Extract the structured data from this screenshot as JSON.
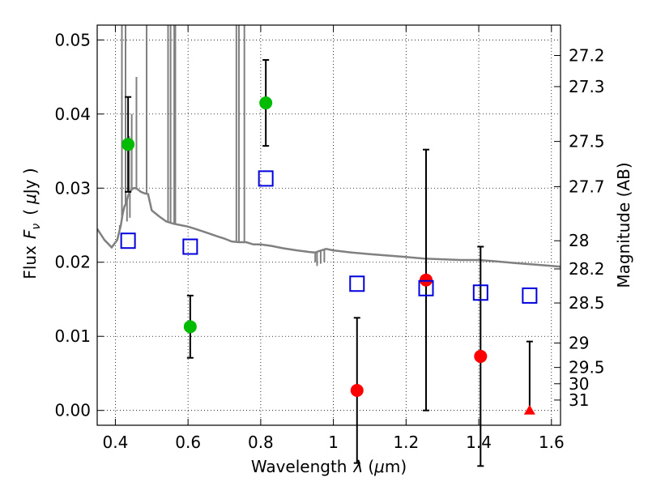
{
  "chart_data": {
    "type": "scatter",
    "xlabel_text": "Wavelength",
    "xlabel_math": "λ",
    "xlabel_unit_open": "(",
    "xlabel_unit_math": "μ",
    "xlabel_unit_rest": "m)",
    "ylabel_text": "Flux",
    "ylabel_math_main": "F",
    "ylabel_math_sub": "ν",
    "ylabel_unit_open": "(",
    "ylabel_unit_math": "μ",
    "ylabel_unit_rest": "Jy )",
    "y2label": "Magnitude (AB)",
    "xlim": [
      0.35,
      1.625
    ],
    "ylim": [
      -0.002,
      0.052
    ],
    "x_ticks": [
      0.4,
      0.6,
      0.8,
      1.0,
      1.2,
      1.4,
      1.6
    ],
    "x_tick_labels": [
      "0.4",
      "0.6",
      "0.8",
      "1",
      "1.2",
      "1.4",
      "1.6"
    ],
    "y_ticks": [
      0.0,
      0.01,
      0.02,
      0.03,
      0.04,
      0.05
    ],
    "y_tick_labels": [
      "0.00",
      "0.01",
      "0.02",
      "0.03",
      "0.04",
      "0.05"
    ],
    "mag_ticks": [
      {
        "label": "27.2",
        "flux": 0.0479
      },
      {
        "label": "27.3",
        "flux": 0.0437
      },
      {
        "label": "27.5",
        "flux": 0.0363
      },
      {
        "label": "27.7",
        "flux": 0.0302
      },
      {
        "label": "28",
        "flux": 0.0229
      },
      {
        "label": "28.2",
        "flux": 0.0191
      },
      {
        "label": "28.5",
        "flux": 0.0145
      },
      {
        "label": "29",
        "flux": 0.0091
      },
      {
        "label": "29.5",
        "flux": 0.0058
      },
      {
        "label": "30",
        "flux": 0.0036
      },
      {
        "label": "31",
        "flux": 0.0014
      }
    ],
    "grid": true,
    "colors": {
      "green": "#00bb00",
      "red": "#ff0000",
      "blue": "#0000dd",
      "model": "#808080",
      "errorbar": "#000000"
    },
    "series": [
      {
        "marker": "circle",
        "color": "#00bb00",
        "points": [
          {
            "x": 0.435,
            "y": 0.0359,
            "err": 0.0064
          },
          {
            "x": 0.606,
            "y": 0.0113,
            "err": 0.0042
          },
          {
            "x": 0.814,
            "y": 0.0415,
            "err": 0.0058
          }
        ]
      },
      {
        "marker": "circle",
        "color": "#ff0000",
        "points": [
          {
            "x": 1.065,
            "y": 0.0027,
            "err": 0.0098
          },
          {
            "x": 1.255,
            "y": 0.0176,
            "err": 0.0176
          },
          {
            "x": 1.405,
            "y": 0.0073,
            "err": 0.0148
          }
        ]
      },
      {
        "marker": "triangle",
        "color": "#ff0000",
        "points": [
          {
            "x": 1.54,
            "y": 0.0,
            "err_hi": 0.0093
          }
        ]
      },
      {
        "marker": "open-square",
        "color": "#0000dd",
        "points": [
          {
            "x": 0.435,
            "y": 0.0229
          },
          {
            "x": 0.606,
            "y": 0.0221
          },
          {
            "x": 0.814,
            "y": 0.0313
          },
          {
            "x": 1.065,
            "y": 0.0171
          },
          {
            "x": 1.255,
            "y": 0.0165
          },
          {
            "x": 1.405,
            "y": 0.0159
          },
          {
            "x": 1.54,
            "y": 0.0155
          }
        ]
      }
    ],
    "model_spectrum": {
      "color": "#808080",
      "x": [
        0.35,
        0.37,
        0.39,
        0.405,
        0.415,
        0.42,
        0.425,
        0.43,
        0.435,
        0.44,
        0.445,
        0.45,
        0.455,
        0.46,
        0.47,
        0.48,
        0.49,
        0.5,
        0.52,
        0.54,
        0.56,
        0.58,
        0.6,
        0.62,
        0.65,
        0.68,
        0.7,
        0.72,
        0.74,
        0.76,
        0.78,
        0.8,
        0.83,
        0.86,
        0.9,
        0.93,
        0.95,
        0.96,
        0.98,
        1.0,
        1.05,
        1.1,
        1.15,
        1.2,
        1.25,
        1.3,
        1.35,
        1.4,
        1.45,
        1.5,
        1.55,
        1.6,
        1.625
      ],
      "y": [
        0.0245,
        0.023,
        0.022,
        0.023,
        0.025,
        0.0265,
        0.0275,
        0.028,
        0.029,
        0.0295,
        0.0298,
        0.03,
        0.03,
        0.0299,
        0.0295,
        0.0293,
        0.0292,
        0.027,
        0.0262,
        0.0255,
        0.0252,
        0.025,
        0.0248,
        0.0245,
        0.024,
        0.0235,
        0.0232,
        0.0228,
        0.0227,
        0.0227,
        0.0224,
        0.0224,
        0.0222,
        0.0219,
        0.0216,
        0.0214,
        0.0213,
        0.0215,
        0.0218,
        0.0216,
        0.0213,
        0.0211,
        0.0209,
        0.0207,
        0.0205,
        0.0204,
        0.0203,
        0.0203,
        0.0201,
        0.0199,
        0.0197,
        0.0195,
        0.0194
      ],
      "spikes": [
        {
          "x": 0.418,
          "to": 0.052
        },
        {
          "x": 0.428,
          "to": 0.052
        },
        {
          "x": 0.438,
          "to": 0.037
        },
        {
          "x": 0.445,
          "to": 0.04
        },
        {
          "x": 0.458,
          "to": 0.045
        },
        {
          "x": 0.486,
          "to": 0.052
        },
        {
          "x": 0.545,
          "to": 0.052
        },
        {
          "x": 0.552,
          "to": 0.052
        },
        {
          "x": 0.562,
          "to": 0.052
        },
        {
          "x": 0.565,
          "to": 0.052
        },
        {
          "x": 0.733,
          "to": 0.052
        },
        {
          "x": 0.74,
          "to": 0.052
        },
        {
          "x": 0.755,
          "to": 0.052
        },
        {
          "x": 0.412,
          "to": 0.025
        },
        {
          "x": 0.432,
          "to": 0.0255
        },
        {
          "x": 0.44,
          "to": 0.026
        },
        {
          "x": 0.95,
          "to": 0.02
        },
        {
          "x": 0.955,
          "to": 0.0195
        },
        {
          "x": 0.965,
          "to": 0.0198
        },
        {
          "x": 0.975,
          "to": 0.02
        }
      ]
    }
  }
}
